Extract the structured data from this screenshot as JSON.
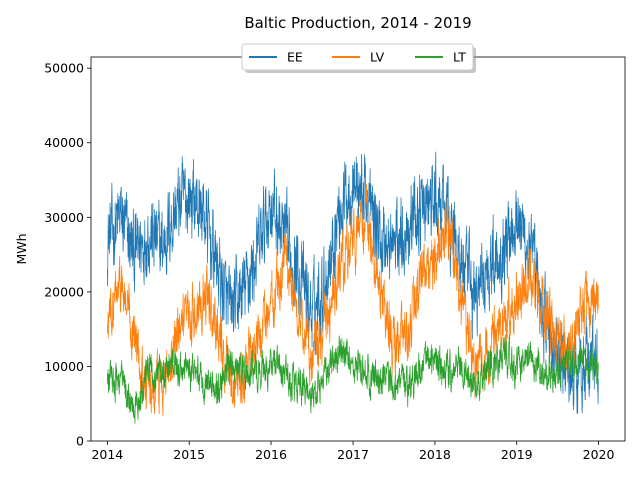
{
  "chart_data": {
    "type": "line",
    "title": "Baltic Production,  2014 - 2019",
    "xlabel": "",
    "ylabel": "MWh",
    "xlim": [
      "2013-10-20",
      "2020-04-28"
    ],
    "ylim": [
      0,
      51500
    ],
    "x_ticks": [
      "2014",
      "2015",
      "2016",
      "2017",
      "2018",
      "2019",
      "2020"
    ],
    "y_ticks": [
      0,
      10000,
      20000,
      30000,
      40000,
      50000
    ],
    "y_tick_labels": [
      "0",
      "10000",
      "20000",
      "30000",
      "40000",
      "50000"
    ],
    "legend_position": "top-center",
    "grid": false,
    "series": [
      {
        "name": "EE",
        "color": "#1f77b4",
        "x": [
          "2014-01-01",
          "2014-03-01",
          "2014-05-01",
          "2014-07-01",
          "2014-09-01",
          "2014-11-01",
          "2015-01-01",
          "2015-03-01",
          "2015-05-01",
          "2015-07-01",
          "2015-09-01",
          "2015-11-01",
          "2016-01-01",
          "2016-03-01",
          "2016-05-01",
          "2016-07-01",
          "2016-09-01",
          "2016-11-01",
          "2017-01-01",
          "2017-03-01",
          "2017-05-01",
          "2017-07-01",
          "2017-09-01",
          "2017-11-01",
          "2018-01-01",
          "2018-03-01",
          "2018-05-01",
          "2018-07-01",
          "2018-09-01",
          "2018-11-01",
          "2019-01-01",
          "2019-03-01",
          "2019-05-01",
          "2019-07-01",
          "2019-09-01",
          "2019-11-01",
          "2019-12-31"
        ],
        "y": [
          27000,
          30000,
          25000,
          28000,
          26000,
          31000,
          33000,
          31000,
          24000,
          17000,
          20000,
          25000,
          32000,
          27000,
          23000,
          17000,
          22000,
          31000,
          35000,
          33000,
          27000,
          26000,
          29000,
          31000,
          32000,
          30000,
          24000,
          19000,
          24000,
          26000,
          31000,
          25000,
          17000,
          11000,
          9000,
          11000,
          10000
        ]
      },
      {
        "name": "LV",
        "color": "#ff7f0e",
        "x": [
          "2014-01-01",
          "2014-03-01",
          "2014-05-01",
          "2014-07-01",
          "2014-09-01",
          "2014-11-01",
          "2015-01-01",
          "2015-03-01",
          "2015-05-01",
          "2015-07-01",
          "2015-09-01",
          "2015-11-01",
          "2016-01-01",
          "2016-03-01",
          "2016-05-01",
          "2016-07-01",
          "2016-09-01",
          "2016-11-01",
          "2017-01-01",
          "2017-03-01",
          "2017-05-01",
          "2017-07-01",
          "2017-09-01",
          "2017-11-01",
          "2018-01-01",
          "2018-03-01",
          "2018-05-01",
          "2018-07-01",
          "2018-09-01",
          "2018-11-01",
          "2019-01-01",
          "2019-03-01",
          "2019-05-01",
          "2019-07-01",
          "2019-09-01",
          "2019-11-01",
          "2019-12-31"
        ],
        "y": [
          15000,
          21000,
          14000,
          7000,
          8000,
          13000,
          16000,
          20000,
          16000,
          8000,
          9000,
          13000,
          18000,
          24000,
          18000,
          11000,
          15000,
          22000,
          27000,
          30000,
          20000,
          12000,
          14000,
          23000,
          24000,
          29000,
          18000,
          9000,
          12000,
          16000,
          19000,
          22000,
          18000,
          13000,
          12000,
          19000,
          18000
        ]
      },
      {
        "name": "LT",
        "color": "#2ca02c",
        "x": [
          "2014-01-01",
          "2014-03-01",
          "2014-05-01",
          "2014-07-01",
          "2014-09-01",
          "2014-11-01",
          "2015-01-01",
          "2015-03-01",
          "2015-05-01",
          "2015-07-01",
          "2015-09-01",
          "2015-11-01",
          "2016-01-01",
          "2016-03-01",
          "2016-05-01",
          "2016-07-01",
          "2016-09-01",
          "2016-11-01",
          "2017-01-01",
          "2017-03-01",
          "2017-05-01",
          "2017-07-01",
          "2017-09-01",
          "2017-11-01",
          "2018-01-01",
          "2018-03-01",
          "2018-05-01",
          "2018-07-01",
          "2018-09-01",
          "2018-11-01",
          "2019-01-01",
          "2019-03-01",
          "2019-05-01",
          "2019-07-01",
          "2019-09-01",
          "2019-11-01",
          "2019-12-31"
        ],
        "y": [
          8000,
          8500,
          4000,
          9000,
          10000,
          10000,
          9500,
          8000,
          7000,
          10500,
          9000,
          9000,
          10000,
          9000,
          7000,
          6500,
          9000,
          12000,
          10500,
          9000,
          8000,
          8000,
          7000,
          10000,
          11000,
          9500,
          10000,
          7000,
          10000,
          11000,
          10000,
          11000,
          9000,
          9000,
          10000,
          10500,
          10000
        ]
      }
    ]
  }
}
